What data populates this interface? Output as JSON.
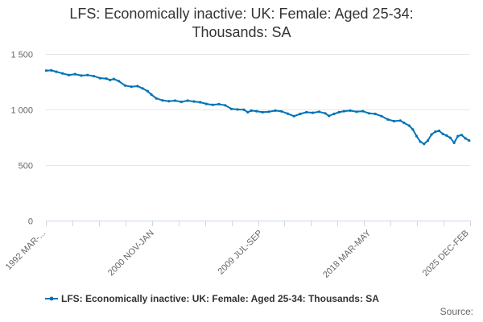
{
  "chart_data": {
    "type": "line",
    "title_line1": "LFS: Economically inactive: UK: Female: Aged 25-34:",
    "title_line2": "Thousands: SA",
    "xlabel": "",
    "ylabel": "",
    "ylim": [
      0,
      1500
    ],
    "y_ticks": [
      0,
      500,
      1000,
      1500
    ],
    "y_tick_labels": [
      "0",
      "500",
      "1 000",
      "1 500"
    ],
    "x_range": [
      1992.17,
      2026.08
    ],
    "x_tick_labels": [
      {
        "label": "1992 MAR-...",
        "x": 1992.17
      },
      {
        "label": "2000 NOV-JAN",
        "x": 2000.83
      },
      {
        "label": "2009 JUL-SEP",
        "x": 2009.5
      },
      {
        "label": "2018 MAR-MAY",
        "x": 2018.17
      },
      {
        "label": "2025 DEC-FEB",
        "x": 2026.0
      }
    ],
    "grid": true,
    "legend_position": "bottom",
    "series": [
      {
        "name": "LFS: Economically inactive: UK: Female: Aged 25-34: Thousands: SA",
        "color": "#0073B6",
        "points": [
          [
            1992.2,
            1350
          ],
          [
            1992.6,
            1352
          ],
          [
            1993.0,
            1340
          ],
          [
            1993.5,
            1325
          ],
          [
            1994.0,
            1310
          ],
          [
            1994.5,
            1318
          ],
          [
            1995.0,
            1305
          ],
          [
            1995.5,
            1310
          ],
          [
            1996.0,
            1300
          ],
          [
            1996.5,
            1282
          ],
          [
            1997.0,
            1278
          ],
          [
            1997.3,
            1265
          ],
          [
            1997.6,
            1275
          ],
          [
            1998.0,
            1255
          ],
          [
            1998.5,
            1215
          ],
          [
            1999.0,
            1205
          ],
          [
            1999.5,
            1210
          ],
          [
            1999.9,
            1190
          ],
          [
            2000.3,
            1165
          ],
          [
            2000.6,
            1135
          ],
          [
            2001.0,
            1100
          ],
          [
            2001.5,
            1082
          ],
          [
            2002.0,
            1075
          ],
          [
            2002.5,
            1080
          ],
          [
            2003.0,
            1068
          ],
          [
            2003.5,
            1080
          ],
          [
            2004.0,
            1072
          ],
          [
            2004.5,
            1065
          ],
          [
            2005.0,
            1050
          ],
          [
            2005.5,
            1042
          ],
          [
            2006.0,
            1048
          ],
          [
            2006.5,
            1038
          ],
          [
            2007.0,
            1005
          ],
          [
            2007.5,
            1000
          ],
          [
            2008.0,
            998
          ],
          [
            2008.3,
            975
          ],
          [
            2008.6,
            990
          ],
          [
            2009.0,
            985
          ],
          [
            2009.5,
            975
          ],
          [
            2010.0,
            980
          ],
          [
            2010.5,
            990
          ],
          [
            2011.0,
            983
          ],
          [
            2011.5,
            962
          ],
          [
            2012.0,
            940
          ],
          [
            2012.5,
            960
          ],
          [
            2013.0,
            975
          ],
          [
            2013.5,
            970
          ],
          [
            2014.0,
            980
          ],
          [
            2014.5,
            965
          ],
          [
            2014.8,
            942
          ],
          [
            2015.2,
            960
          ],
          [
            2015.6,
            975
          ],
          [
            2016.0,
            985
          ],
          [
            2016.5,
            990
          ],
          [
            2017.0,
            980
          ],
          [
            2017.5,
            985
          ],
          [
            2018.0,
            965
          ],
          [
            2018.5,
            960
          ],
          [
            2019.0,
            940
          ],
          [
            2019.5,
            910
          ],
          [
            2020.0,
            895
          ],
          [
            2020.5,
            900
          ],
          [
            2020.8,
            880
          ],
          [
            2021.2,
            855
          ],
          [
            2021.5,
            820
          ],
          [
            2021.8,
            760
          ],
          [
            2022.1,
            710
          ],
          [
            2022.4,
            690
          ],
          [
            2022.7,
            720
          ],
          [
            2023.0,
            775
          ],
          [
            2023.3,
            800
          ],
          [
            2023.6,
            808
          ],
          [
            2023.9,
            780
          ],
          [
            2024.2,
            765
          ],
          [
            2024.5,
            745
          ],
          [
            2024.8,
            700
          ],
          [
            2025.1,
            760
          ],
          [
            2025.4,
            770
          ],
          [
            2025.7,
            740
          ],
          [
            2026.0,
            720
          ]
        ]
      }
    ]
  },
  "legend": {
    "label": "LFS: Economically inactive: UK: Female: Aged 25-34: Thousands: SA"
  },
  "footer": {
    "source_label": "Source:"
  }
}
